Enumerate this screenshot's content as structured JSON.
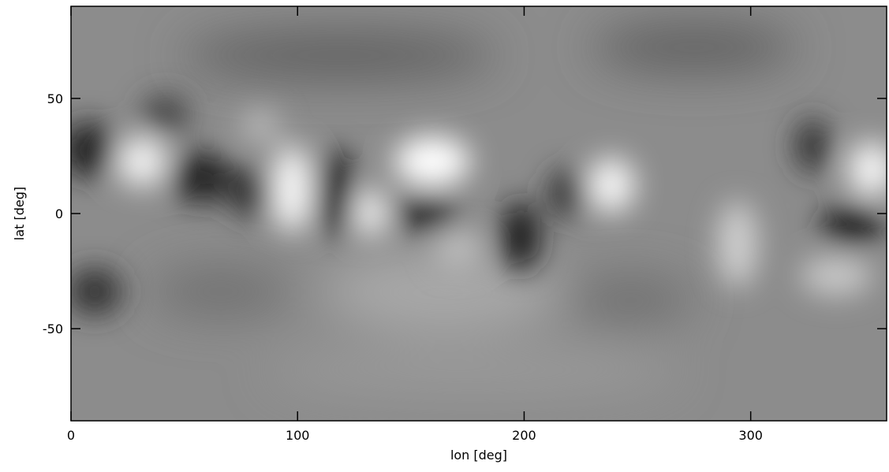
{
  "chart_data": {
    "type": "image",
    "x_label": "lon [deg]",
    "y_label": "lat [deg]",
    "xlim": [
      0,
      360
    ],
    "xticks": [
      0,
      100,
      200,
      300
    ],
    "ylim": [
      -90,
      90
    ],
    "yticks": [
      -50,
      0,
      50
    ]
  }
}
